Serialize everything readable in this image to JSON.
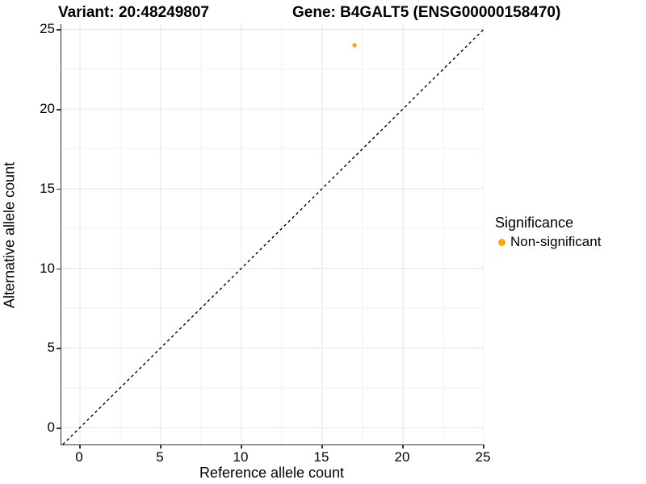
{
  "titles": {
    "variant": "Variant: 20:48249807",
    "gene": "Gene: B4GALT5 (ENSG00000158470)"
  },
  "chart_data": {
    "type": "scatter",
    "xlabel": "Reference allele count",
    "ylabel": "Alternative allele count",
    "x_ticks": [
      0,
      5,
      10,
      15,
      20,
      25
    ],
    "y_ticks": [
      0,
      5,
      10,
      15,
      20,
      25
    ],
    "x_minor_ticks": [
      2.5,
      7.5,
      12.5,
      17.5,
      22.5
    ],
    "y_minor_ticks": [
      2.5,
      7.5,
      12.5,
      17.5,
      22.5
    ],
    "xlim": [
      -1.15,
      25.0
    ],
    "ylim": [
      -1.06,
      25.32
    ],
    "grid": "on",
    "reference_line": {
      "type": "identity y=x",
      "style": "dashed",
      "color": "#000000",
      "from": -1.06,
      "to": 25.0
    },
    "series": [
      {
        "name": "Non-significant",
        "color": "#FFA500",
        "points": [
          {
            "x": 17,
            "y": 24
          }
        ]
      }
    ],
    "legend": {
      "title": "Significance",
      "position": "right",
      "items": [
        {
          "label": "Non-significant",
          "color": "#FFA500"
        }
      ]
    },
    "colors": {
      "grid_major": "#e5e5e5",
      "grid_minor": "#f2f2f2",
      "axis_line": "#333333",
      "tick_mark": "#333333",
      "text": "#000000"
    }
  }
}
